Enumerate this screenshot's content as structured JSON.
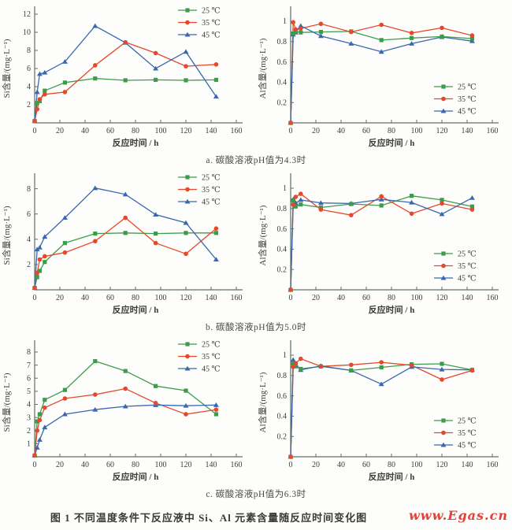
{
  "page": {
    "figure_caption": "图 1  不同温度条件下反应液中 Si、Al 元素含量随反应时间变化图",
    "watermark": "www.Egas.cn"
  },
  "colors": {
    "temp25": "#3d9c4b",
    "temp35": "#e4492c",
    "temp45": "#3a67ad",
    "axis": "#5e7066",
    "text": "#3c3c38",
    "watermark": "#e34239"
  },
  "sections": [
    {
      "label": "a. 碳酸溶液pH值为4.3时"
    },
    {
      "label": "b. 碳酸溶液pH值为5.0时"
    },
    {
      "label": "c. 碳酸溶液pH值为6.3时"
    }
  ],
  "chart_data": [
    {
      "type": "line",
      "panel": "a",
      "position": "left",
      "xlabel": "反应时间 / h",
      "ylabel": "Si含量/(mg·L⁻¹)",
      "xlim": [
        0,
        160
      ],
      "xticks": [
        0,
        20,
        40,
        60,
        80,
        100,
        120,
        140,
        160
      ],
      "ylim": [
        0,
        12
      ],
      "yticks": [
        2,
        4,
        6,
        8,
        10,
        12
      ],
      "grid": false,
      "legend_position": "top-right",
      "x": [
        0,
        2,
        4,
        8,
        24,
        48,
        72,
        96,
        120,
        144
      ],
      "series": [
        {
          "name": "25 ℃",
          "marker": "square",
          "color": "#3d9c4b",
          "values": [
            0.2,
            2.2,
            2.4,
            3.55,
            4.45,
            4.9,
            4.7,
            4.75,
            4.7,
            4.75
          ]
        },
        {
          "name": "35 ℃",
          "marker": "circle",
          "color": "#e4492c",
          "values": [
            0.2,
            1.5,
            2.6,
            3.15,
            3.4,
            6.35,
            8.9,
            7.7,
            6.25,
            6.45
          ]
        },
        {
          "name": "45 ℃",
          "marker": "triangle",
          "color": "#3a67ad",
          "values": [
            0.2,
            3.4,
            5.4,
            5.55,
            6.75,
            10.7,
            8.85,
            6.0,
            7.85,
            2.9
          ]
        }
      ]
    },
    {
      "type": "line",
      "panel": "a",
      "position": "right",
      "xlabel": "反应时间 / h",
      "ylabel": "Al含量/(mg·L⁻¹)",
      "xlim": [
        0,
        160
      ],
      "xticks": [
        0,
        20,
        40,
        60,
        80,
        100,
        120,
        140,
        160
      ],
      "ylim": [
        0,
        1.07
      ],
      "yticks": [
        0.2,
        0.4,
        0.6,
        0.8,
        1.0
      ],
      "grid": false,
      "legend_position": "mid-right",
      "x": [
        0,
        2,
        4,
        8,
        24,
        48,
        72,
        96,
        120,
        144
      ],
      "series": [
        {
          "name": "25 ℃",
          "marker": "square",
          "color": "#3d9c4b",
          "values": [
            0,
            0.88,
            0.9,
            0.89,
            0.895,
            0.9,
            0.815,
            0.835,
            0.85,
            0.83
          ]
        },
        {
          "name": "35 ℃",
          "marker": "circle",
          "color": "#e4492c",
          "values": [
            0,
            0.99,
            0.92,
            0.93,
            0.975,
            0.895,
            0.965,
            0.885,
            0.935,
            0.86
          ]
        },
        {
          "name": "45 ℃",
          "marker": "triangle",
          "color": "#3a67ad",
          "values": [
            0,
            0.87,
            0.89,
            0.955,
            0.855,
            0.78,
            0.7,
            0.78,
            0.845,
            0.805
          ]
        }
      ]
    },
    {
      "type": "line",
      "panel": "b",
      "position": "left",
      "xlabel": "反应时间 / h",
      "ylabel": "Si含量/(mg·L⁻¹)",
      "xlim": [
        0,
        160
      ],
      "xticks": [
        0,
        20,
        40,
        60,
        80,
        100,
        120,
        140,
        160
      ],
      "ylim": [
        0,
        8.6
      ],
      "yticks": [
        2,
        4,
        6,
        8
      ],
      "grid": false,
      "legend_position": "top-right",
      "x": [
        0,
        2,
        4,
        8,
        24,
        48,
        72,
        96,
        120,
        144
      ],
      "series": [
        {
          "name": "25 ℃",
          "marker": "square",
          "color": "#3d9c4b",
          "values": [
            0.15,
            1.0,
            1.5,
            2.2,
            3.7,
            4.45,
            4.5,
            4.45,
            4.5,
            4.5
          ]
        },
        {
          "name": "35 ℃",
          "marker": "circle",
          "color": "#e4492c",
          "values": [
            0.15,
            1.35,
            2.4,
            2.65,
            2.95,
            3.85,
            5.7,
            3.7,
            2.85,
            4.85
          ]
        },
        {
          "name": "45 ℃",
          "marker": "triangle",
          "color": "#3a67ad",
          "values": [
            0.15,
            3.2,
            3.35,
            4.2,
            5.7,
            8.05,
            7.55,
            5.95,
            5.3,
            2.4
          ]
        }
      ]
    },
    {
      "type": "line",
      "panel": "b",
      "position": "right",
      "xlabel": "反应时间 / h",
      "ylabel": "Al含量/(mg·L⁻¹)",
      "xlim": [
        0,
        160
      ],
      "xticks": [
        0,
        20,
        40,
        60,
        80,
        100,
        120,
        140,
        160
      ],
      "ylim": [
        0,
        1.07
      ],
      "yticks": [
        0.2,
        0.4,
        0.6,
        0.8,
        1.0
      ],
      "grid": false,
      "legend_position": "mid-right",
      "x": [
        0,
        2,
        4,
        8,
        24,
        48,
        72,
        96,
        120,
        144
      ],
      "series": [
        {
          "name": "25 ℃",
          "marker": "square",
          "color": "#3d9c4b",
          "values": [
            0,
            0.88,
            0.82,
            0.84,
            0.81,
            0.845,
            0.83,
            0.925,
            0.885,
            0.82
          ]
        },
        {
          "name": "35 ℃",
          "marker": "circle",
          "color": "#e4492c",
          "values": [
            0,
            0.84,
            0.915,
            0.945,
            0.79,
            0.735,
            0.92,
            0.75,
            0.85,
            0.79
          ]
        },
        {
          "name": "45 ℃",
          "marker": "triangle",
          "color": "#3a67ad",
          "values": [
            0,
            0.89,
            0.855,
            0.885,
            0.855,
            0.85,
            0.89,
            0.86,
            0.745,
            0.905
          ]
        }
      ]
    },
    {
      "type": "line",
      "panel": "c",
      "position": "left",
      "xlabel": "反应时间 / h",
      "ylabel": "Si含量/(mg·L⁻¹)",
      "xlim": [
        0,
        160
      ],
      "xticks": [
        0,
        20,
        40,
        60,
        80,
        100,
        120,
        140,
        160
      ],
      "ylim": [
        0,
        8.3
      ],
      "yticks": [
        1,
        2,
        3,
        4,
        5,
        6,
        7,
        8
      ],
      "grid": false,
      "legend_position": "top-right",
      "x": [
        0,
        2,
        4,
        8,
        24,
        48,
        72,
        96,
        120,
        144
      ],
      "series": [
        {
          "name": "25 ℃",
          "marker": "square",
          "color": "#3d9c4b",
          "values": [
            0.1,
            2.7,
            3.25,
            4.35,
            5.1,
            7.3,
            6.55,
            5.4,
            5.05,
            3.25
          ]
        },
        {
          "name": "35 ℃",
          "marker": "circle",
          "color": "#e4492c",
          "values": [
            0.1,
            2.0,
            2.8,
            3.75,
            4.45,
            4.75,
            5.2,
            4.1,
            3.25,
            3.6
          ]
        },
        {
          "name": "45 ℃",
          "marker": "triangle",
          "color": "#3a67ad",
          "values": [
            0.1,
            0.7,
            1.3,
            2.25,
            3.25,
            3.6,
            3.85,
            3.95,
            3.9,
            3.95
          ]
        }
      ]
    },
    {
      "type": "line",
      "panel": "c",
      "position": "right",
      "xlabel": "反应时间 / h",
      "ylabel": "Al含量/(mg·L⁻¹)",
      "xlim": [
        0,
        160
      ],
      "xticks": [
        0,
        20,
        40,
        60,
        80,
        100,
        120,
        140,
        160
      ],
      "ylim": [
        0,
        1.07
      ],
      "yticks": [
        0.2,
        0.4,
        0.6,
        0.8,
        1.0
      ],
      "grid": false,
      "legend_position": "mid-right",
      "x": [
        0,
        2,
        4,
        8,
        24,
        48,
        72,
        96,
        120,
        144
      ],
      "series": [
        {
          "name": "25 ℃",
          "marker": "square",
          "color": "#3d9c4b",
          "values": [
            0,
            0.92,
            0.89,
            0.865,
            0.89,
            0.85,
            0.88,
            0.91,
            0.915,
            0.855
          ]
        },
        {
          "name": "35 ℃",
          "marker": "circle",
          "color": "#e4492c",
          "values": [
            0,
            0.885,
            0.92,
            0.965,
            0.89,
            0.905,
            0.93,
            0.9,
            0.76,
            0.85
          ]
        },
        {
          "name": "45 ℃",
          "marker": "triangle",
          "color": "#3a67ad",
          "values": [
            0,
            0.955,
            0.91,
            0.855,
            0.895,
            0.85,
            0.715,
            0.885,
            0.86,
            0.855
          ]
        }
      ]
    }
  ]
}
